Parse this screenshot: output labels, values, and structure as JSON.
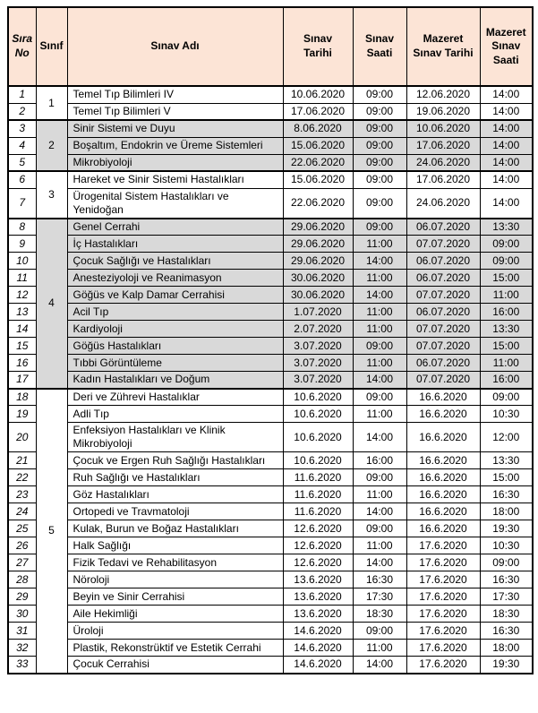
{
  "colors": {
    "header_bg": "#FCE4D6",
    "shaded_row_bg": "#D9D9D9",
    "border": "#000000",
    "text": "#000000"
  },
  "table": {
    "columns": [
      {
        "key": "no",
        "label": "Sıra\nNo"
      },
      {
        "key": "sinif",
        "label": "Sınıf"
      },
      {
        "key": "name",
        "label": "Sınav Adı"
      },
      {
        "key": "date",
        "label": "Sınav\nTarihi"
      },
      {
        "key": "time",
        "label": "Sınav\nSaati"
      },
      {
        "key": "mdate",
        "label": "Mazeret\nSınav Tarihi"
      },
      {
        "key": "mtime",
        "label": "Mazeret\nSınav\nSaati"
      }
    ],
    "groups": [
      {
        "sinif": "1",
        "shaded": false,
        "rows": [
          {
            "no": "1",
            "name": "Temel Tıp Bilimleri IV",
            "date": "10.06.2020",
            "time": "09:00",
            "mdate": "12.06.2020",
            "mtime": "14:00"
          },
          {
            "no": "2",
            "name": "Temel Tıp Bilimleri V",
            "date": "17.06.2020",
            "time": "09:00",
            "mdate": "19.06.2020",
            "mtime": "14:00"
          }
        ]
      },
      {
        "sinif": "2",
        "shaded": true,
        "rows": [
          {
            "no": "3",
            "name": "Sinir Sistemi ve Duyu",
            "date": "8.06.2020",
            "time": "09:00",
            "mdate": "10.06.2020",
            "mtime": "14:00"
          },
          {
            "no": "4",
            "name": "Boşaltım, Endokrin ve Üreme Sistemleri",
            "date": "15.06.2020",
            "time": "09:00",
            "mdate": "17.06.2020",
            "mtime": "14:00"
          },
          {
            "no": "5",
            "name": "Mikrobiyoloji",
            "date": "22.06.2020",
            "time": "09:00",
            "mdate": "24.06.2020",
            "mtime": "14:00"
          }
        ]
      },
      {
        "sinif": "3",
        "shaded": false,
        "rows": [
          {
            "no": "6",
            "name": "Hareket ve Sinir Sistemi Hastalıkları",
            "date": "15.06.2020",
            "time": "09:00",
            "mdate": "17.06.2020",
            "mtime": "14:00"
          },
          {
            "no": "7",
            "name": "Ürogenital Sistem Hastalıkları ve\nYenidoğan",
            "date": "22.06.2020",
            "time": "09:00",
            "mdate": "24.06.2020",
            "mtime": "14:00"
          }
        ]
      },
      {
        "sinif": "4",
        "shaded": true,
        "rows": [
          {
            "no": "8",
            "name": "Genel Cerrahi",
            "date": "29.06.2020",
            "time": "09:00",
            "mdate": "06.07.2020",
            "mtime": "13:30"
          },
          {
            "no": "9",
            "name": "İç Hastalıkları",
            "date": "29.06.2020",
            "time": "11:00",
            "mdate": "07.07.2020",
            "mtime": "09:00"
          },
          {
            "no": "10",
            "name": "Çocuk Sağlığı ve Hastalıkları",
            "date": "29.06.2020",
            "time": "14:00",
            "mdate": "06.07.2020",
            "mtime": "09:00"
          },
          {
            "no": "11",
            "name": "Anesteziyoloji ve Reanimasyon",
            "date": "30.06.2020",
            "time": "11:00",
            "mdate": "06.07.2020",
            "mtime": "15:00"
          },
          {
            "no": "12",
            "name": "Göğüs ve Kalp Damar Cerrahisi",
            "date": "30.06.2020",
            "time": "14:00",
            "mdate": "07.07.2020",
            "mtime": "11:00"
          },
          {
            "no": "13",
            "name": "Acil Tıp",
            "date": "1.07.2020",
            "time": "11:00",
            "mdate": "06.07.2020",
            "mtime": "16:00"
          },
          {
            "no": "14",
            "name": "Kardiyoloji",
            "date": "2.07.2020",
            "time": "11:00",
            "mdate": "07.07.2020",
            "mtime": "13:30"
          },
          {
            "no": "15",
            "name": "Göğüs Hastalıkları",
            "date": "3.07.2020",
            "time": "09:00",
            "mdate": "07.07.2020",
            "mtime": "15:00"
          },
          {
            "no": "16",
            "name": "Tıbbi Görüntüleme",
            "date": "3.07.2020",
            "time": "11:00",
            "mdate": "06.07.2020",
            "mtime": "11:00"
          },
          {
            "no": "17",
            "name": "Kadın Hastalıkları  ve Doğum",
            "date": "3.07.2020",
            "time": "14:00",
            "mdate": "07.07.2020",
            "mtime": "16:00"
          }
        ]
      },
      {
        "sinif": "5",
        "shaded": false,
        "rows": [
          {
            "no": "18",
            "name": "Deri ve Zührevi Hastalıklar",
            "date": "10.6.2020",
            "time": "09:00",
            "mdate": "16.6.2020",
            "mtime": "09:00"
          },
          {
            "no": "19",
            "name": "Adli Tıp",
            "date": "10.6.2020",
            "time": "11:00",
            "mdate": "16.6.2020",
            "mtime": "10:30"
          },
          {
            "no": "20",
            "name": "Enfeksiyon Hastalıkları ve Klinik\nMikrobiyoloji",
            "date": "10.6.2020",
            "time": "14:00",
            "mdate": "16.6.2020",
            "mtime": "12:00"
          },
          {
            "no": "21",
            "name": "Çocuk ve Ergen Ruh Sağlığı Hastalıkları",
            "date": "10.6.2020",
            "time": "16:00",
            "mdate": "16.6.2020",
            "mtime": "13:30"
          },
          {
            "no": "22",
            "name": "Ruh Sağlığı  ve Hastalıkları",
            "date": "11.6.2020",
            "time": "09:00",
            "mdate": "16.6.2020",
            "mtime": "15:00"
          },
          {
            "no": "23",
            "name": "Göz Hastalıkları",
            "date": "11.6.2020",
            "time": "11:00",
            "mdate": "16.6.2020",
            "mtime": "16:30"
          },
          {
            "no": "24",
            "name": "Ortopedi ve Travmatoloji",
            "date": "11.6.2020",
            "time": "14:00",
            "mdate": "16.6.2020",
            "mtime": "18:00"
          },
          {
            "no": "25",
            "name": "Kulak, Burun ve Boğaz  Hastalıkları",
            "date": "12.6.2020",
            "time": "09:00",
            "mdate": "16.6.2020",
            "mtime": "19:30"
          },
          {
            "no": "26",
            "name": "Halk Sağlığı",
            "date": "12.6.2020",
            "time": "11:00",
            "mdate": "17.6.2020",
            "mtime": "10:30"
          },
          {
            "no": "27",
            "name": "Fizik Tedavi ve Rehabilitasyon",
            "date": "12.6.2020",
            "time": "14:00",
            "mdate": "17.6.2020",
            "mtime": "09:00"
          },
          {
            "no": "28",
            "name": "Nöroloji",
            "date": "13.6.2020",
            "time": "16:30",
            "mdate": "17.6.2020",
            "mtime": "16:30"
          },
          {
            "no": "29",
            "name": "Beyin ve Sinir Cerrahisi",
            "date": "13.6.2020",
            "time": "17:30",
            "mdate": "17.6.2020",
            "mtime": "17:30"
          },
          {
            "no": "30",
            "name": "Aile Hekimliği",
            "date": "13.6.2020",
            "time": "18:30",
            "mdate": "17.6.2020",
            "mtime": "18:30"
          },
          {
            "no": "31",
            "name": "Üroloji",
            "date": "14.6.2020",
            "time": "09:00",
            "mdate": "17.6.2020",
            "mtime": "16:30"
          },
          {
            "no": "32",
            "name": "Plastik, Rekonstrüktif ve Estetik  Cerrahi",
            "date": "14.6.2020",
            "time": "11:00",
            "mdate": "17.6.2020",
            "mtime": "18:00"
          },
          {
            "no": "33",
            "name": "Çocuk Cerrahisi",
            "date": "14.6.2020",
            "time": "14:00",
            "mdate": "17.6.2020",
            "mtime": "19:30"
          }
        ]
      }
    ]
  }
}
